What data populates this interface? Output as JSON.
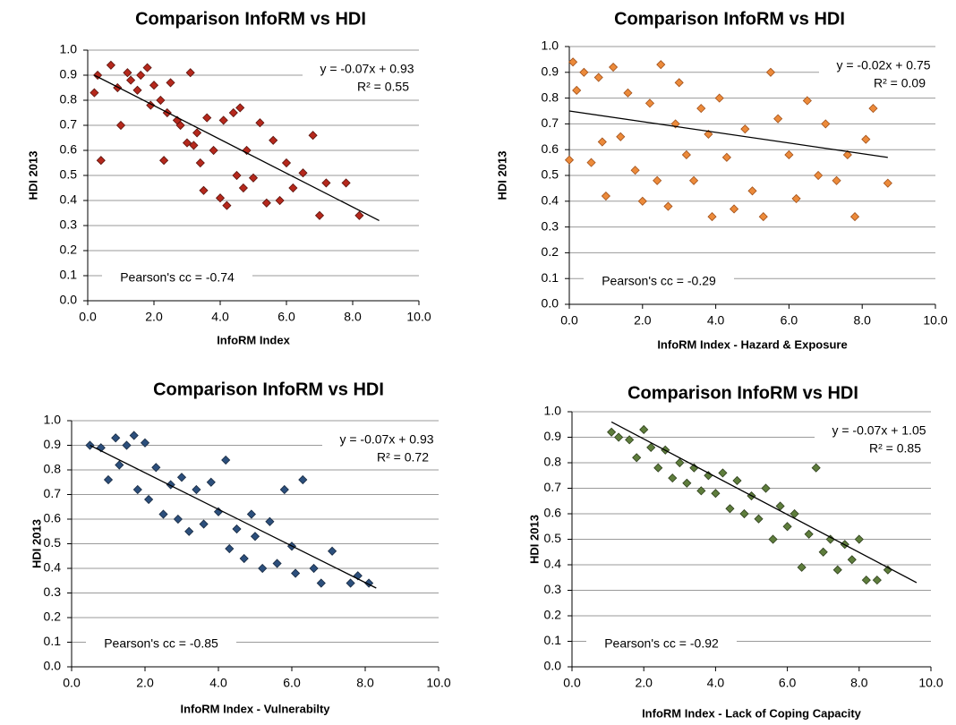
{
  "chart_data": [
    {
      "type": "scatter",
      "title": "Comparison InfoRM vs HDI",
      "x_label": "InfoRM Index",
      "y_label": "HDI 2013",
      "color": "#b5281c",
      "edge": "#5a120c",
      "x": [
        0.2,
        0.3,
        0.4,
        0.7,
        0.9,
        1.0,
        1.2,
        1.3,
        1.5,
        1.6,
        1.8,
        1.9,
        2.0,
        2.2,
        2.3,
        2.4,
        2.5,
        2.7,
        2.8,
        3.0,
        3.1,
        3.2,
        3.3,
        3.4,
        3.5,
        3.6,
        3.8,
        4.0,
        4.1,
        4.2,
        4.4,
        4.5,
        4.6,
        4.7,
        4.8,
        5.0,
        5.2,
        5.4,
        5.6,
        5.8,
        6.0,
        6.2,
        6.5,
        6.8,
        7.0,
        7.2,
        7.8,
        8.2
      ],
      "values": [
        0.83,
        0.9,
        0.56,
        0.94,
        0.85,
        0.7,
        0.91,
        0.88,
        0.84,
        0.9,
        0.93,
        0.78,
        0.86,
        0.8,
        0.56,
        0.75,
        0.87,
        0.72,
        0.7,
        0.63,
        0.91,
        0.62,
        0.67,
        0.55,
        0.44,
        0.73,
        0.6,
        0.41,
        0.72,
        0.38,
        0.75,
        0.5,
        0.77,
        0.45,
        0.6,
        0.49,
        0.71,
        0.39,
        0.64,
        0.4,
        0.55,
        0.45,
        0.51,
        0.66,
        0.34,
        0.47,
        0.47,
        0.34
      ],
      "trendline": {
        "x": [
          0.2,
          8.8
        ],
        "values": [
          0.9,
          0.32
        ]
      },
      "equation": "y = -0.07x + 0.93",
      "r_squared": "R² = 0.55",
      "pearson": "Pearson's cc = -0.74",
      "xlim": [
        0,
        10
      ],
      "ylim": [
        0,
        1
      ],
      "xticks": [
        {
          "value": 0,
          "label": "0.0"
        },
        {
          "value": 2,
          "label": "2.0"
        },
        {
          "value": 4,
          "label": "4.0"
        },
        {
          "value": 6,
          "label": "6.0"
        },
        {
          "value": 8,
          "label": "8.0"
        },
        {
          "value": 10,
          "label": "10.0"
        }
      ],
      "yticks": [
        {
          "value": 0,
          "label": "0.0"
        },
        0.1,
        0.2,
        0.3,
        0.4,
        0.5,
        0.6,
        0.7,
        0.8,
        0.9,
        {
          "value": 1,
          "label": "1.0"
        }
      ],
      "grid": true
    },
    {
      "type": "scatter",
      "title": "Comparison InfoRM vs HDI",
      "x_label": "InfoRM Index - Hazard & Exposure",
      "y_label": "HDI 2013",
      "color": "#ec8a3a",
      "edge": "#a0501a",
      "x": [
        0.0,
        0.1,
        0.2,
        0.4,
        0.6,
        0.8,
        0.9,
        1.0,
        1.2,
        1.4,
        1.6,
        1.8,
        2.0,
        2.2,
        2.4,
        2.5,
        2.7,
        2.9,
        3.0,
        3.2,
        3.4,
        3.6,
        3.8,
        3.9,
        4.1,
        4.3,
        4.5,
        4.8,
        5.0,
        5.3,
        5.5,
        5.7,
        6.0,
        6.2,
        6.5,
        6.8,
        7.0,
        7.3,
        7.6,
        7.8,
        8.1,
        8.3,
        8.7
      ],
      "values": [
        0.56,
        0.94,
        0.83,
        0.9,
        0.55,
        0.88,
        0.63,
        0.42,
        0.92,
        0.65,
        0.82,
        0.52,
        0.4,
        0.78,
        0.48,
        0.93,
        0.38,
        0.7,
        0.86,
        0.58,
        0.48,
        0.76,
        0.66,
        0.34,
        0.8,
        0.57,
        0.37,
        0.68,
        0.44,
        0.34,
        0.9,
        0.72,
        0.58,
        0.41,
        0.79,
        0.5,
        0.7,
        0.48,
        0.58,
        0.34,
        0.64,
        0.76,
        0.47
      ],
      "trendline": {
        "x": [
          0,
          8.7
        ],
        "values": [
          0.75,
          0.57
        ]
      },
      "equation": "y = -0.02x + 0.75",
      "r_squared": "R² = 0.09",
      "pearson": "Pearson's cc = -0.29",
      "xlim": [
        0,
        10
      ],
      "ylim": [
        0,
        1
      ],
      "xticks": [
        {
          "value": 0,
          "label": "0.0"
        },
        {
          "value": 2,
          "label": "2.0"
        },
        {
          "value": 4,
          "label": "4.0"
        },
        {
          "value": 6,
          "label": "6.0"
        },
        {
          "value": 8,
          "label": "8.0"
        },
        {
          "value": 10,
          "label": "10.0"
        }
      ],
      "yticks": [
        {
          "value": 0,
          "label": "0.0"
        },
        0.1,
        0.2,
        0.3,
        0.4,
        0.5,
        0.6,
        0.7,
        0.8,
        0.9,
        {
          "value": 1,
          "label": "1.0"
        }
      ],
      "grid": true
    },
    {
      "type": "scatter",
      "title": "Comparison InfoRM vs HDI",
      "x_label": "InfoRM Index -  Vulnerabilty",
      "y_label": "HDI 2013",
      "color": "#2c4f7c",
      "edge": "#16283f",
      "x": [
        0.5,
        0.8,
        1.0,
        1.2,
        1.3,
        1.5,
        1.7,
        1.8,
        2.0,
        2.1,
        2.3,
        2.5,
        2.7,
        2.9,
        3.0,
        3.2,
        3.4,
        3.6,
        3.8,
        4.0,
        4.2,
        4.3,
        4.5,
        4.7,
        4.9,
        5.0,
        5.2,
        5.4,
        5.6,
        5.8,
        6.0,
        6.1,
        6.3,
        6.6,
        6.8,
        7.1,
        7.6,
        7.8,
        8.1
      ],
      "values": [
        0.9,
        0.89,
        0.76,
        0.93,
        0.82,
        0.9,
        0.94,
        0.72,
        0.91,
        0.68,
        0.81,
        0.62,
        0.74,
        0.6,
        0.77,
        0.55,
        0.72,
        0.58,
        0.75,
        0.63,
        0.84,
        0.48,
        0.56,
        0.44,
        0.62,
        0.53,
        0.4,
        0.59,
        0.42,
        0.72,
        0.49,
        0.38,
        0.76,
        0.4,
        0.34,
        0.47,
        0.34,
        0.37,
        0.34
      ],
      "trendline": {
        "x": [
          0.5,
          8.3
        ],
        "values": [
          0.9,
          0.32
        ]
      },
      "equation": "y = -0.07x + 0.93",
      "r_squared": "R² = 0.72",
      "pearson": "Pearson's cc = -0.85",
      "xlim": [
        0,
        10
      ],
      "ylim": [
        0,
        1
      ],
      "xticks": [
        {
          "value": 0,
          "label": "0.0"
        },
        {
          "value": 2,
          "label": "2.0"
        },
        {
          "value": 4,
          "label": "4.0"
        },
        {
          "value": 6,
          "label": "6.0"
        },
        {
          "value": 8,
          "label": "8.0"
        },
        {
          "value": 10,
          "label": "10.0"
        }
      ],
      "yticks": [
        {
          "value": 0,
          "label": "0.0"
        },
        0.1,
        0.2,
        0.3,
        0.4,
        0.5,
        0.6,
        0.7,
        0.8,
        0.9,
        {
          "value": 1,
          "label": "1.0"
        }
      ],
      "grid": true
    },
    {
      "type": "scatter",
      "title": "Comparison InfoRM vs HDI",
      "x_label": "InfoRM Index -  Lack of Coping Capacity",
      "y_label": "HDI 2013",
      "color": "#5e7d3c",
      "edge": "#2e3f1c",
      "x": [
        1.1,
        1.3,
        1.6,
        1.8,
        2.0,
        2.2,
        2.4,
        2.6,
        2.8,
        3.0,
        3.2,
        3.4,
        3.6,
        3.8,
        4.0,
        4.2,
        4.4,
        4.6,
        4.8,
        5.0,
        5.2,
        5.4,
        5.6,
        5.8,
        6.0,
        6.2,
        6.4,
        6.6,
        6.8,
        7.0,
        7.2,
        7.4,
        7.6,
        7.8,
        8.0,
        8.2,
        8.5,
        8.8
      ],
      "values": [
        0.92,
        0.9,
        0.89,
        0.82,
        0.93,
        0.86,
        0.78,
        0.85,
        0.74,
        0.8,
        0.72,
        0.78,
        0.69,
        0.75,
        0.68,
        0.76,
        0.62,
        0.73,
        0.6,
        0.67,
        0.58,
        0.7,
        0.5,
        0.63,
        0.55,
        0.6,
        0.39,
        0.52,
        0.78,
        0.45,
        0.5,
        0.38,
        0.48,
        0.42,
        0.5,
        0.34,
        0.34,
        0.38
      ],
      "trendline": {
        "x": [
          1.1,
          9.6
        ],
        "values": [
          0.96,
          0.33
        ]
      },
      "equation": "y = -0.07x + 1.05",
      "r_squared": "R² = 0.85",
      "pearson": "Pearson's cc = -0.92",
      "xlim": [
        0,
        10
      ],
      "ylim": [
        0,
        1
      ],
      "xticks": [
        {
          "value": 0,
          "label": "0.0"
        },
        {
          "value": 2,
          "label": "2.0"
        },
        {
          "value": 4,
          "label": "4.0"
        },
        {
          "value": 6,
          "label": "6.0"
        },
        {
          "value": 8,
          "label": "8.0"
        },
        {
          "value": 10,
          "label": "10.0"
        }
      ],
      "yticks": [
        {
          "value": 0,
          "label": "0.0"
        },
        0.1,
        0.2,
        0.3,
        0.4,
        0.5,
        0.6,
        0.7,
        0.8,
        0.9,
        {
          "value": 1,
          "label": "1.0"
        }
      ],
      "grid": true
    }
  ]
}
